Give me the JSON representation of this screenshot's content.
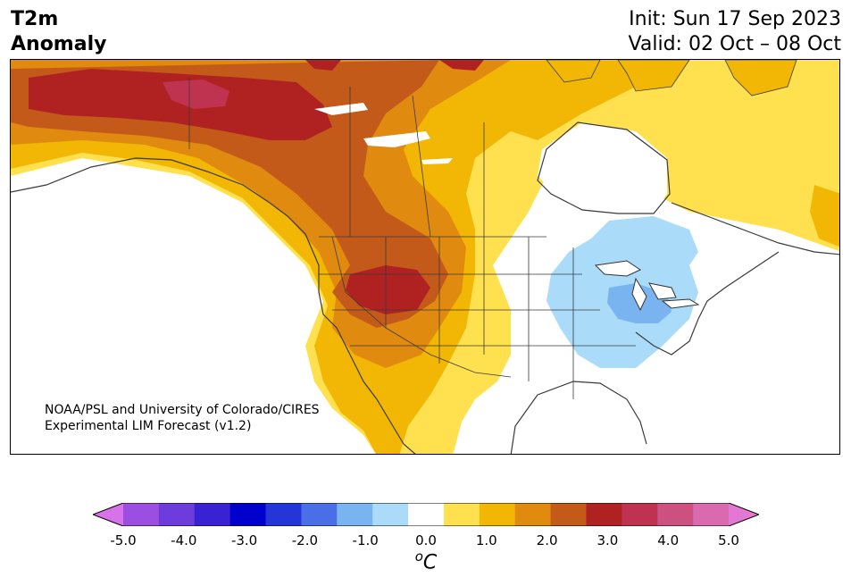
{
  "title": {
    "line1": "T2m",
    "line2": "Anomaly"
  },
  "run": {
    "init": "Init: Sun 17 Sep 2023",
    "valid": "Valid: 02 Oct – 08 Oct"
  },
  "credit": {
    "line1": "NOAA/PSL and University of Colorado/CIRES",
    "line2": "Experimental LIM Forecast (v1.2)"
  },
  "colorbar": {
    "unit_base": "C",
    "unit_super": "o",
    "colors": [
      "#d872e8",
      "#9b4fe0",
      "#6c3ddc",
      "#3a22d4",
      "#0000cc",
      "#2536d9",
      "#4a6ee6",
      "#7ab4f0",
      "#aadcfa",
      "#ffffff",
      "#ffe14f",
      "#f2b705",
      "#e08a10",
      "#c45a1a",
      "#b02222",
      "#c03350",
      "#cc5080",
      "#d96aad",
      "#e477d4"
    ],
    "ticks": [
      "-5.0",
      "-4.0",
      "-3.0",
      "-2.0",
      "-1.0",
      "0.0",
      "1.0",
      "2.0",
      "3.0",
      "4.0",
      "5.0"
    ]
  },
  "legend_colors": {
    "neg_weak": "#aadcfa",
    "neg_mid": "#7ab4f0",
    "pos_1": "#ffe14f",
    "pos_2": "#f2b705",
    "pos_3": "#e08a10",
    "pos_4": "#c45a1a",
    "pos_5": "#b02222",
    "pos_6": "#c03350"
  }
}
